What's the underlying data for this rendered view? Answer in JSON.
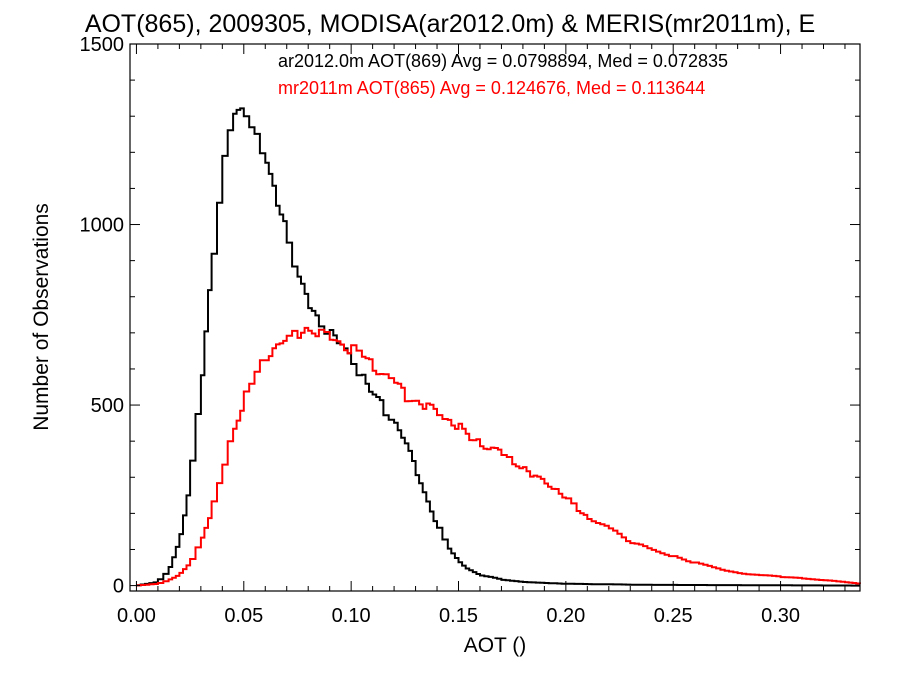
{
  "chart_data": {
    "type": "line",
    "title": "AOT(865), 2009305, MODISA(ar2012.0m) & MERIS(mr2011m), E",
    "xlabel": "AOT ()",
    "ylabel": "Number of Observations",
    "xlim": [
      -0.003,
      0.337
    ],
    "ylim": [
      -15,
      1500
    ],
    "xticks": [
      0.0,
      0.05,
      0.1,
      0.15,
      0.2,
      0.25,
      0.3
    ],
    "xtick_labels": [
      "0.00",
      "0.05",
      "0.10",
      "0.15",
      "0.20",
      "0.25",
      "0.30"
    ],
    "yticks": [
      0,
      500,
      1000,
      1500
    ],
    "ytick_labels": [
      "0",
      "500",
      "1000",
      "1500"
    ],
    "legend_position": "top-right",
    "grid": false,
    "series": [
      {
        "name": "ar2012.0m AOT(869) Avg = 0.0798894, Med = 0.072835",
        "color": "#000000",
        "x": [
          0.0,
          0.01,
          0.015,
          0.02,
          0.025,
          0.03,
          0.035,
          0.04,
          0.045,
          0.05,
          0.055,
          0.06,
          0.065,
          0.07,
          0.075,
          0.08,
          0.085,
          0.09,
          0.095,
          0.1,
          0.105,
          0.11,
          0.115,
          0.12,
          0.125,
          0.13,
          0.135,
          0.14,
          0.145,
          0.15,
          0.155,
          0.16,
          0.17,
          0.18,
          0.2,
          0.24,
          0.337
        ],
        "y": [
          0,
          10,
          40,
          120,
          280,
          530,
          850,
          1130,
          1290,
          1320,
          1270,
          1190,
          1090,
          990,
          860,
          780,
          720,
          690,
          670,
          635,
          590,
          545,
          500,
          460,
          400,
          320,
          240,
          170,
          110,
          70,
          45,
          30,
          17,
          10,
          5,
          2,
          0
        ]
      },
      {
        "name": "mr2011m AOT(865) Avg = 0.124676, Med = 0.113644",
        "color": "#ff0000",
        "x": [
          0.0,
          0.01,
          0.015,
          0.02,
          0.025,
          0.03,
          0.035,
          0.04,
          0.045,
          0.05,
          0.055,
          0.06,
          0.065,
          0.07,
          0.075,
          0.08,
          0.085,
          0.09,
          0.095,
          0.1,
          0.105,
          0.11,
          0.115,
          0.12,
          0.125,
          0.13,
          0.135,
          0.14,
          0.145,
          0.15,
          0.155,
          0.16,
          0.165,
          0.17,
          0.175,
          0.18,
          0.185,
          0.19,
          0.195,
          0.2,
          0.205,
          0.21,
          0.22,
          0.23,
          0.24,
          0.25,
          0.26,
          0.27,
          0.28,
          0.29,
          0.3,
          0.31,
          0.32,
          0.33,
          0.337
        ],
        "y": [
          0,
          5,
          15,
          30,
          60,
          120,
          200,
          300,
          420,
          510,
          580,
          640,
          670,
          690,
          695,
          700,
          690,
          680,
          670,
          660,
          650,
          620,
          590,
          570,
          520,
          500,
          490,
          480,
          460,
          450,
          420,
          400,
          380,
          370,
          340,
          320,
          300,
          290,
          270,
          250,
          220,
          190,
          160,
          120,
          100,
          80,
          65,
          50,
          35,
          30,
          25,
          20,
          15,
          10,
          5
        ]
      }
    ]
  }
}
